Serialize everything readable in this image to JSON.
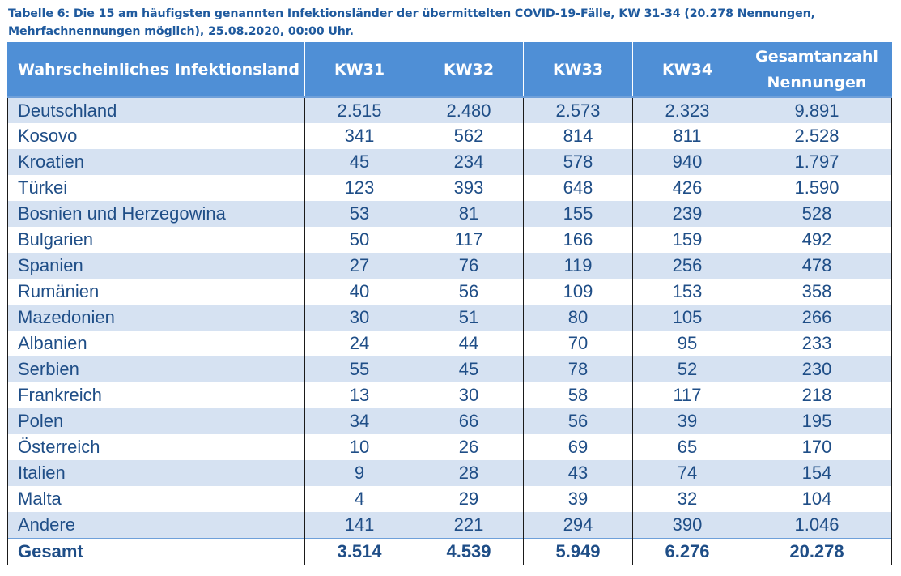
{
  "caption": "Tabelle 6: Die 15 am häufigsten genannten Infektionsländer der übermittelten COVID-19-Fälle, KW 31-34 (20.278 Nennungen, Mehrfachnennungen möglich), 25.08.2020, 00:00 Uhr.",
  "headers": {
    "country": "Wahrscheinliches Infektionsland",
    "kw31": "KW31",
    "kw32": "KW32",
    "kw33": "KW33",
    "kw34": "KW34",
    "total": "Gesamtanzahl Nennungen"
  },
  "rows": [
    [
      "Deutschland",
      "2.515",
      "2.480",
      "2.573",
      "2.323",
      "9.891"
    ],
    [
      "Kosovo",
      "341",
      "562",
      "814",
      "811",
      "2.528"
    ],
    [
      "Kroatien",
      "45",
      "234",
      "578",
      "940",
      "1.797"
    ],
    [
      "Türkei",
      "123",
      "393",
      "648",
      "426",
      "1.590"
    ],
    [
      "Bosnien und Herzegowina",
      "53",
      "81",
      "155",
      "239",
      "528"
    ],
    [
      "Bulgarien",
      "50",
      "117",
      "166",
      "159",
      "492"
    ],
    [
      "Spanien",
      "27",
      "76",
      "119",
      "256",
      "478"
    ],
    [
      "Rumänien",
      "40",
      "56",
      "109",
      "153",
      "358"
    ],
    [
      "Mazedonien",
      "30",
      "51",
      "80",
      "105",
      "266"
    ],
    [
      "Albanien",
      "24",
      "44",
      "70",
      "95",
      "233"
    ],
    [
      "Serbien",
      "55",
      "45",
      "78",
      "52",
      "230"
    ],
    [
      "Frankreich",
      "13",
      "30",
      "58",
      "117",
      "218"
    ],
    [
      "Polen",
      "34",
      "66",
      "56",
      "39",
      "195"
    ],
    [
      "Österreich",
      "10",
      "26",
      "69",
      "65",
      "170"
    ],
    [
      "Italien",
      "9",
      "28",
      "43",
      "74",
      "154"
    ],
    [
      "Malta",
      "4",
      "29",
      "39",
      "32",
      "104"
    ],
    [
      "Andere",
      "141",
      "221",
      "294",
      "390",
      "1.046"
    ]
  ],
  "total_row": [
    "Gesamt",
    "3.514",
    "4.539",
    "5.949",
    "6.276",
    "20.278"
  ],
  "colors": {
    "header_bg": "#4f8fd6",
    "band_bg": "#d6e2f2",
    "text": "#1f4e87",
    "caption": "#1f5a9e"
  }
}
